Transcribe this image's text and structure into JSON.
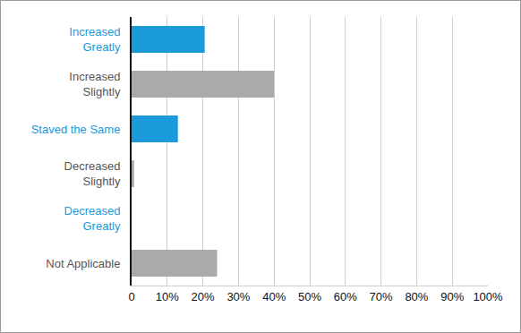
{
  "chart_data": {
    "type": "bar",
    "orientation": "horizontal",
    "categories": [
      "Increased Greatly",
      "Increased Slightly",
      "Staved the Same",
      "Decreased Slightly",
      "Decreased Greatly",
      "Not Applicable"
    ],
    "values": [
      20.5,
      40,
      13,
      0.7,
      0,
      24
    ],
    "colors": [
      "#1a9ad9",
      "#aaaaaa",
      "#1a9ad9",
      "#aaaaaa",
      "#1a9ad9",
      "#aaaaaa"
    ],
    "xlim": [
      0,
      100
    ],
    "xticks": [
      0,
      {
        "value": 10,
        "label": "10%"
      },
      {
        "value": 20,
        "label": "20%"
      },
      {
        "value": 30,
        "label": "30%"
      },
      {
        "value": 40,
        "label": "40%"
      },
      {
        "value": 50,
        "label": "50%"
      },
      {
        "value": 60,
        "label": "60%"
      },
      {
        "value": 70,
        "label": "70%"
      },
      {
        "value": 80,
        "label": "80%"
      },
      {
        "value": 90,
        "label": "90%"
      },
      {
        "value": 100,
        "label": "100%"
      }
    ],
    "grid": true
  }
}
